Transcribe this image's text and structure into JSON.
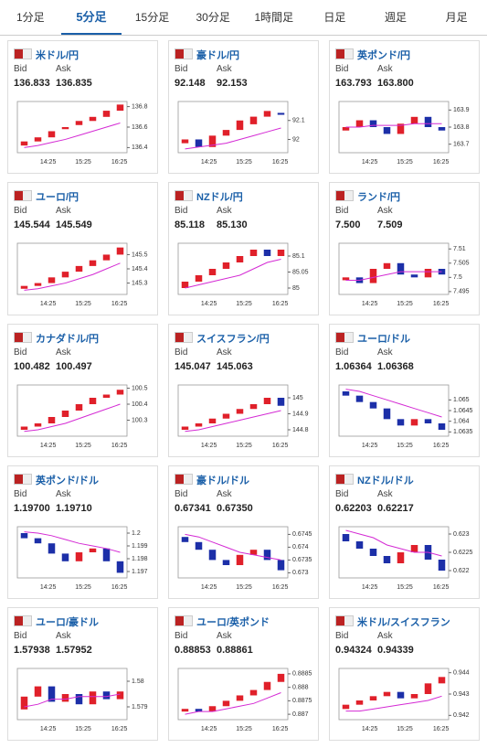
{
  "tabs": [
    "1分足",
    "5分足",
    "15分足",
    "30分足",
    "1時間足",
    "日足",
    "週足",
    "月足"
  ],
  "active_tab": 1,
  "labels": {
    "bid": "Bid",
    "ask": "Ask"
  },
  "time_labels": [
    "14:25",
    "15:25",
    "16:25"
  ],
  "cards": [
    {
      "title": "米ドル/円",
      "bid": "136.833",
      "ask": "136.835",
      "ylim": [
        136.35,
        136.85
      ],
      "yticks": [
        136.4,
        136.6,
        136.8
      ],
      "open": [
        136.42,
        136.46,
        136.5,
        136.58,
        136.62,
        136.66,
        136.7,
        136.76
      ],
      "close": [
        136.46,
        136.5,
        136.56,
        136.6,
        136.66,
        136.7,
        136.76,
        136.82
      ],
      "ma": [
        136.4,
        136.42,
        136.45,
        136.48,
        136.52,
        136.56,
        136.6,
        136.64
      ]
    },
    {
      "title": "豪ドル/円",
      "bid": "92.148",
      "ask": "92.153",
      "ylim": [
        91.93,
        92.2
      ],
      "yticks": [
        92,
        92.1
      ],
      "open": [
        91.98,
        92.0,
        91.96,
        92.02,
        92.05,
        92.08,
        92.12,
        92.14
      ],
      "close": [
        92.0,
        91.96,
        92.02,
        92.05,
        92.1,
        92.12,
        92.15,
        92.13
      ],
      "ma": [
        91.95,
        91.96,
        91.97,
        91.98,
        92.0,
        92.02,
        92.04,
        92.06
      ]
    },
    {
      "title": "英ポンド/円",
      "bid": "163.793",
      "ask": "163.800",
      "ylim": [
        163.65,
        163.95
      ],
      "yticks": [
        163.7,
        163.8,
        163.9
      ],
      "open": [
        163.78,
        163.8,
        163.84,
        163.8,
        163.76,
        163.82,
        163.86,
        163.8
      ],
      "close": [
        163.8,
        163.84,
        163.8,
        163.76,
        163.82,
        163.86,
        163.8,
        163.78
      ],
      "ma": [
        163.8,
        163.8,
        163.81,
        163.81,
        163.81,
        163.82,
        163.82,
        163.82
      ]
    },
    {
      "title": "ユーロ/円",
      "bid": "145.544",
      "ask": "145.549",
      "ylim": [
        145.22,
        145.58
      ],
      "yticks": [
        145.3,
        145.4,
        145.5
      ],
      "open": [
        145.26,
        145.28,
        145.3,
        145.34,
        145.38,
        145.42,
        145.46,
        145.5
      ],
      "close": [
        145.28,
        145.3,
        145.34,
        145.38,
        145.42,
        145.46,
        145.5,
        145.55
      ],
      "ma": [
        145.25,
        145.26,
        145.28,
        145.3,
        145.33,
        145.36,
        145.4,
        145.44
      ]
    },
    {
      "title": "NZドル/円",
      "bid": "85.118",
      "ask": "85.130",
      "ylim": [
        84.98,
        85.14
      ],
      "yticks": [
        85,
        85.05,
        85.1
      ],
      "open": [
        85.0,
        85.02,
        85.04,
        85.06,
        85.08,
        85.1,
        85.12,
        85.1
      ],
      "close": [
        85.02,
        85.04,
        85.06,
        85.08,
        85.1,
        85.12,
        85.1,
        85.12
      ],
      "ma": [
        85.0,
        85.01,
        85.02,
        85.03,
        85.04,
        85.06,
        85.08,
        85.09
      ]
    },
    {
      "title": "ランド/円",
      "bid": "7.500",
      "ask": "7.509",
      "ylim": [
        7.494,
        7.512
      ],
      "yticks": [
        7.495,
        7.5,
        7.505,
        7.51
      ],
      "open": [
        7.499,
        7.5,
        7.498,
        7.503,
        7.505,
        7.501,
        7.5,
        7.503
      ],
      "close": [
        7.5,
        7.498,
        7.503,
        7.505,
        7.501,
        7.5,
        7.503,
        7.501
      ],
      "ma": [
        7.499,
        7.499,
        7.5,
        7.501,
        7.502,
        7.502,
        7.502,
        7.502
      ]
    },
    {
      "title": "カナダドル/円",
      "bid": "100.482",
      "ask": "100.497",
      "ylim": [
        100.2,
        100.52
      ],
      "yticks": [
        100.3,
        100.4,
        100.5
      ],
      "open": [
        100.24,
        100.26,
        100.28,
        100.32,
        100.36,
        100.4,
        100.44,
        100.46
      ],
      "close": [
        100.26,
        100.28,
        100.32,
        100.36,
        100.4,
        100.44,
        100.46,
        100.49
      ],
      "ma": [
        100.23,
        100.24,
        100.26,
        100.28,
        100.31,
        100.34,
        100.37,
        100.4
      ]
    },
    {
      "title": "スイスフラン/円",
      "bid": "145.047",
      "ask": "145.063",
      "ylim": [
        144.76,
        145.08
      ],
      "yticks": [
        144.8,
        144.9,
        145
      ],
      "open": [
        144.8,
        144.82,
        144.84,
        144.87,
        144.9,
        144.93,
        144.96,
        145.0
      ],
      "close": [
        144.82,
        144.84,
        144.87,
        144.9,
        144.93,
        144.96,
        145.0,
        144.95
      ],
      "ma": [
        144.79,
        144.8,
        144.82,
        144.84,
        144.86,
        144.88,
        144.9,
        144.92
      ]
    },
    {
      "title": "ユーロ/ドル",
      "bid": "1.06364",
      "ask": "1.06368",
      "ylim": [
        1.0633,
        1.0657
      ],
      "yticks": [
        1.0635,
        1.064,
        1.0645,
        1.065
      ],
      "open": [
        1.0654,
        1.0652,
        1.0649,
        1.0646,
        1.0641,
        1.0638,
        1.0641,
        1.0639
      ],
      "close": [
        1.0652,
        1.0649,
        1.0646,
        1.0641,
        1.0638,
        1.0641,
        1.0639,
        1.0636
      ],
      "ma": [
        1.0655,
        1.0654,
        1.0652,
        1.065,
        1.0648,
        1.0646,
        1.0644,
        1.0642
      ]
    },
    {
      "title": "英ポンド/ドル",
      "bid": "1.19700",
      "ask": "1.19710",
      "ylim": [
        1.1965,
        1.2005
      ],
      "yticks": [
        1.197,
        1.198,
        1.199,
        1.2
      ],
      "open": [
        1.2,
        1.1996,
        1.1992,
        1.1984,
        1.1978,
        1.1985,
        1.1988,
        1.1978
      ],
      "close": [
        1.1996,
        1.1992,
        1.1984,
        1.1978,
        1.1985,
        1.1988,
        1.1978,
        1.1969
      ],
      "ma": [
        1.2001,
        1.2,
        1.1998,
        1.1995,
        1.1992,
        1.199,
        1.1988,
        1.1985
      ]
    },
    {
      "title": "豪ドル/ドル",
      "bid": "0.67341",
      "ask": "0.67350",
      "ylim": [
        0.6728,
        0.6748
      ],
      "yticks": [
        0.673,
        0.6735,
        0.674,
        0.6745
      ],
      "open": [
        0.6744,
        0.6742,
        0.6739,
        0.6735,
        0.6733,
        0.6737,
        0.6739,
        0.6735
      ],
      "close": [
        0.6742,
        0.6739,
        0.6735,
        0.6733,
        0.6737,
        0.6739,
        0.6735,
        0.6731
      ],
      "ma": [
        0.6745,
        0.6744,
        0.6742,
        0.674,
        0.6738,
        0.6737,
        0.6736,
        0.6735
      ]
    },
    {
      "title": "NZドル/ドル",
      "bid": "0.62203",
      "ask": "0.62217",
      "ylim": [
        0.6218,
        0.6232
      ],
      "yticks": [
        0.622,
        0.6225,
        0.623
      ],
      "open": [
        0.623,
        0.6228,
        0.6226,
        0.6224,
        0.6222,
        0.6225,
        0.6227,
        0.6223
      ],
      "close": [
        0.6228,
        0.6226,
        0.6224,
        0.6222,
        0.6225,
        0.6227,
        0.6223,
        0.622
      ],
      "ma": [
        0.6231,
        0.623,
        0.6229,
        0.6227,
        0.6226,
        0.6225,
        0.6225,
        0.6224
      ]
    },
    {
      "title": "ユーロ/豪ドル",
      "bid": "1.57938",
      "ask": "1.57952",
      "ylim": [
        1.5785,
        1.5805
      ],
      "yticks": [
        1.579,
        1.58
      ],
      "open": [
        1.5789,
        1.5794,
        1.5798,
        1.5792,
        1.5795,
        1.5791,
        1.5796,
        1.5793
      ],
      "close": [
        1.5794,
        1.5798,
        1.5792,
        1.5795,
        1.5791,
        1.5796,
        1.5793,
        1.5796
      ],
      "ma": [
        1.579,
        1.5791,
        1.5793,
        1.5793,
        1.5794,
        1.5794,
        1.5794,
        1.5795
      ]
    },
    {
      "title": "ユーロ/英ポンド",
      "bid": "0.88853",
      "ask": "0.88861",
      "ylim": [
        0.8868,
        0.8887
      ],
      "yticks": [
        0.887,
        0.8875,
        0.888,
        0.8885
      ],
      "open": [
        0.8871,
        0.8872,
        0.8871,
        0.8873,
        0.8875,
        0.8877,
        0.8879,
        0.8882
      ],
      "close": [
        0.8872,
        0.8871,
        0.8873,
        0.8875,
        0.8877,
        0.8879,
        0.8882,
        0.8885
      ],
      "ma": [
        0.887,
        0.8871,
        0.8871,
        0.8872,
        0.8873,
        0.8874,
        0.8876,
        0.8878
      ]
    },
    {
      "title": "米ドル/スイスフラン",
      "bid": "0.94324",
      "ask": "0.94339",
      "ylim": [
        0.9418,
        0.9442
      ],
      "yticks": [
        0.942,
        0.943,
        0.944
      ],
      "open": [
        0.9423,
        0.9425,
        0.9427,
        0.9429,
        0.9431,
        0.9428,
        0.943,
        0.9435
      ],
      "close": [
        0.9425,
        0.9427,
        0.9429,
        0.9431,
        0.9428,
        0.943,
        0.9435,
        0.9438
      ],
      "ma": [
        0.9422,
        0.9422,
        0.9423,
        0.9424,
        0.9425,
        0.9426,
        0.9427,
        0.9429
      ]
    }
  ]
}
